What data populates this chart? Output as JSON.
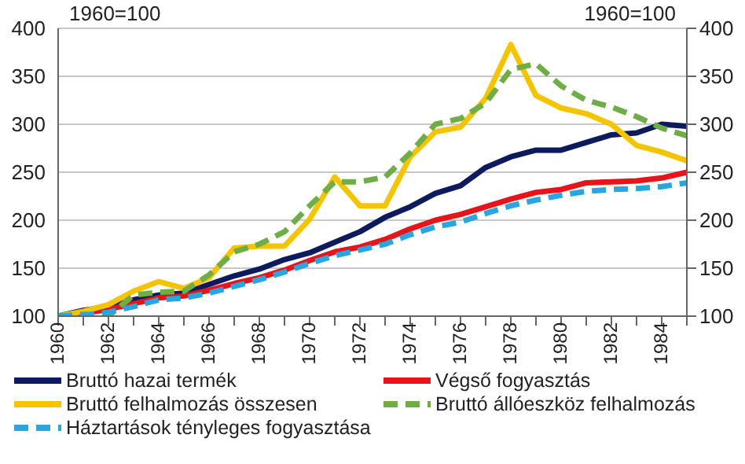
{
  "chart_data": {
    "type": "line",
    "annotations": [
      "1960=100",
      "1960=100"
    ],
    "categories": [
      "1960",
      null,
      "1962",
      null,
      "1964",
      null,
      "1966",
      null,
      "1968",
      null,
      "1970",
      null,
      "1972",
      null,
      "1974",
      null,
      "1976",
      null,
      "1978",
      null,
      "1980",
      null,
      "1982",
      null,
      "1984",
      null
    ],
    "series": [
      {
        "name": "Bruttó hazai termék",
        "color": "#0d1b5e",
        "values": [
          100,
          106,
          110,
          117,
          122,
          124,
          133,
          142,
          149,
          159,
          166,
          177,
          188,
          203,
          214,
          228,
          236,
          255,
          266,
          273,
          273,
          281,
          289,
          291,
          300,
          298
        ]
      },
      {
        "name": "Végső fogyasztás",
        "color": "#e8141c",
        "values": [
          100,
          103,
          107,
          113,
          119,
          121,
          127,
          134,
          140,
          148,
          158,
          167,
          172,
          180,
          191,
          200,
          206,
          214,
          222,
          229,
          232,
          239,
          240,
          241,
          244,
          250
        ]
      },
      {
        "name": "Bruttó felhalmozás összesen",
        "color": "#f5c400",
        "values": [
          100,
          105,
          112,
          126,
          136,
          129,
          140,
          171,
          173,
          173,
          201,
          245,
          215,
          215,
          266,
          292,
          297,
          327,
          383,
          330,
          317,
          311,
          300,
          278,
          271,
          262
        ]
      },
      {
        "name": "Bruttó állóeszköz felhalmozás",
        "color": "#70ad47",
        "line_style": "dashed",
        "values": [
          100,
          102,
          100,
          122,
          125,
          126,
          143,
          167,
          175,
          188,
          215,
          240,
          240,
          245,
          270,
          300,
          306,
          322,
          357,
          363,
          340,
          325,
          318,
          308,
          296,
          288
        ]
      },
      {
        "name": "Háztartások tényleges fogyasztása",
        "color": "#2aa5e0",
        "line_style": "dashed",
        "values": [
          100,
          101,
          104,
          110,
          117,
          119,
          124,
          131,
          138,
          146,
          155,
          163,
          169,
          175,
          185,
          193,
          198,
          207,
          215,
          221,
          226,
          230,
          232,
          233,
          235,
          239
        ]
      }
    ],
    "ylim": [
      100,
      400
    ],
    "yticks": [
      100,
      150,
      200,
      250,
      300,
      350,
      400
    ],
    "y2lim": [
      100,
      400
    ],
    "y2ticks": [
      100,
      150,
      200,
      250,
      300,
      350,
      400
    ],
    "grid": "y",
    "legend": "bottom",
    "marker": "none"
  }
}
